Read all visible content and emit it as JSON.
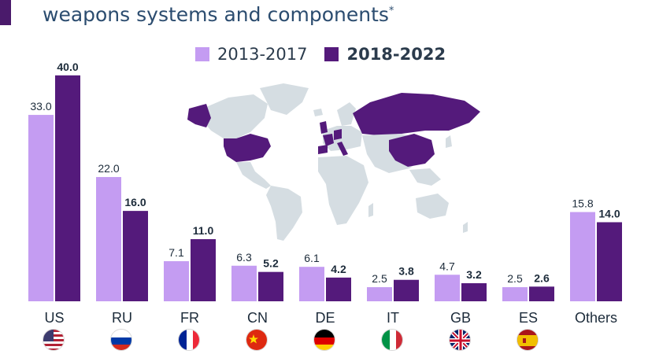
{
  "header": {
    "subtitle": "weapons systems and components",
    "footnote_mark": "*"
  },
  "legend": {
    "items": [
      {
        "label": "2013-2017",
        "color": "#c49cf2"
      },
      {
        "label": "2018-2022",
        "color": "#541a7b"
      }
    ]
  },
  "colors": {
    "accent": "#4a1a6b",
    "map_land": "#d5dde2",
    "map_highlight": "#541a7b",
    "subtitle_text": "#2b4c6f"
  },
  "flags": [
    "us-flag-icon",
    "ru-flag-icon",
    "fr-flag-icon",
    "cn-flag-icon",
    "de-flag-icon",
    "it-flag-icon",
    "gb-flag-icon",
    "es-flag-icon"
  ],
  "chart_data": {
    "type": "bar",
    "categories": [
      "US",
      "RU",
      "FR",
      "CN",
      "DE",
      "IT",
      "GB",
      "ES",
      "Others"
    ],
    "series": [
      {
        "name": "2013-2017",
        "values": [
          33.0,
          22.0,
          7.1,
          6.3,
          6.1,
          2.5,
          4.7,
          2.5,
          15.8
        ]
      },
      {
        "name": "2018-2022",
        "values": [
          40.0,
          16.0,
          11.0,
          5.2,
          4.2,
          3.8,
          3.2,
          2.6,
          14.0
        ]
      }
    ],
    "data_labels": [
      [
        "33.0",
        "22.0",
        "7.1",
        "6.3",
        "6.1",
        "2.5",
        "4.7",
        "2.5",
        "15.8"
      ],
      [
        "40.0",
        "16.0",
        "11.0",
        "5.2",
        "4.2",
        "3.8",
        "3.2",
        "2.6",
        "14.0"
      ]
    ],
    "ylim": [
      0,
      40
    ],
    "grid": false,
    "legend_position": "top-center",
    "background": "world map with highlighted countries: US, RU, FR, CN, DE, IT, GB, ES"
  }
}
